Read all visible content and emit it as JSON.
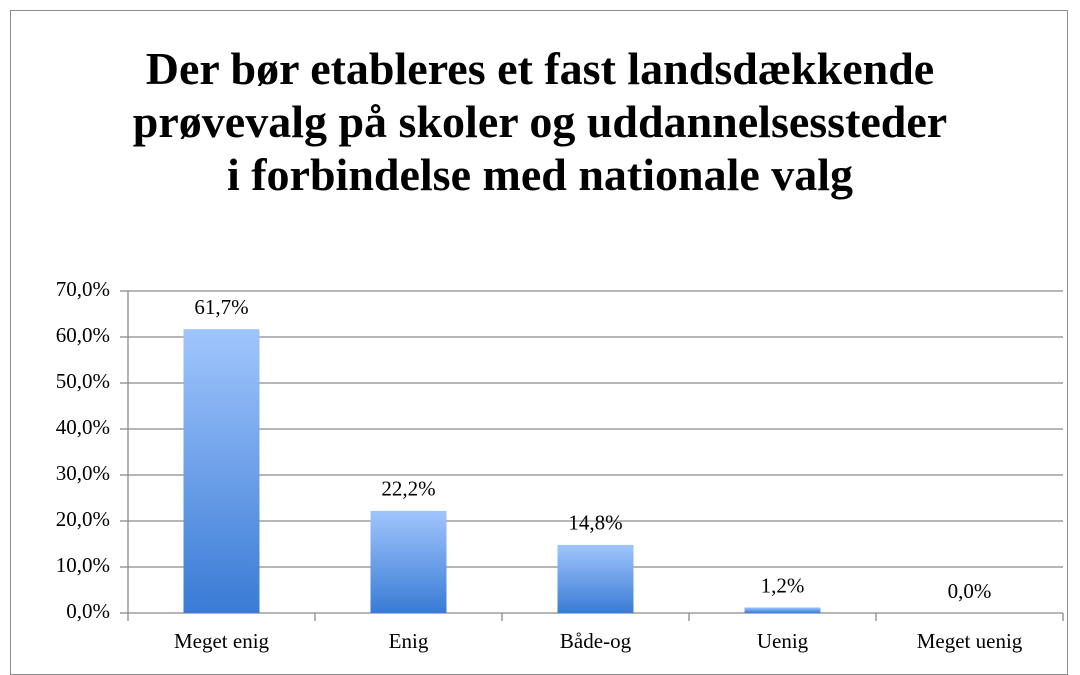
{
  "chart_data": {
    "type": "bar",
    "title": "Der bør etableres et fast landsdækkende prøvevalg på skoler og uddannelsessteder i forbindelse med nationale valg",
    "categories": [
      "Meget enig",
      "Enig",
      "Både-og",
      "Uenig",
      "Meget uenig"
    ],
    "values": [
      61.7,
      22.2,
      14.8,
      1.2,
      0.0
    ],
    "value_labels": [
      "61,7%",
      "22,2%",
      "14,8%",
      "1,2%",
      "0,0%"
    ],
    "color": "#5b8fe0",
    "ylim": [
      0,
      70
    ],
    "yticks": [
      {
        "value": 0,
        "label": "0,0%"
      },
      {
        "value": 10,
        "label": "10,0%"
      },
      {
        "value": 20,
        "label": "20,0%"
      },
      {
        "value": 30,
        "label": "30,0%"
      },
      {
        "value": 40,
        "label": "40,0%"
      },
      {
        "value": 50,
        "label": "50,0%"
      },
      {
        "value": 60,
        "label": "60,0%"
      },
      {
        "value": 70,
        "label": "70,0%"
      }
    ],
    "grid": true
  }
}
